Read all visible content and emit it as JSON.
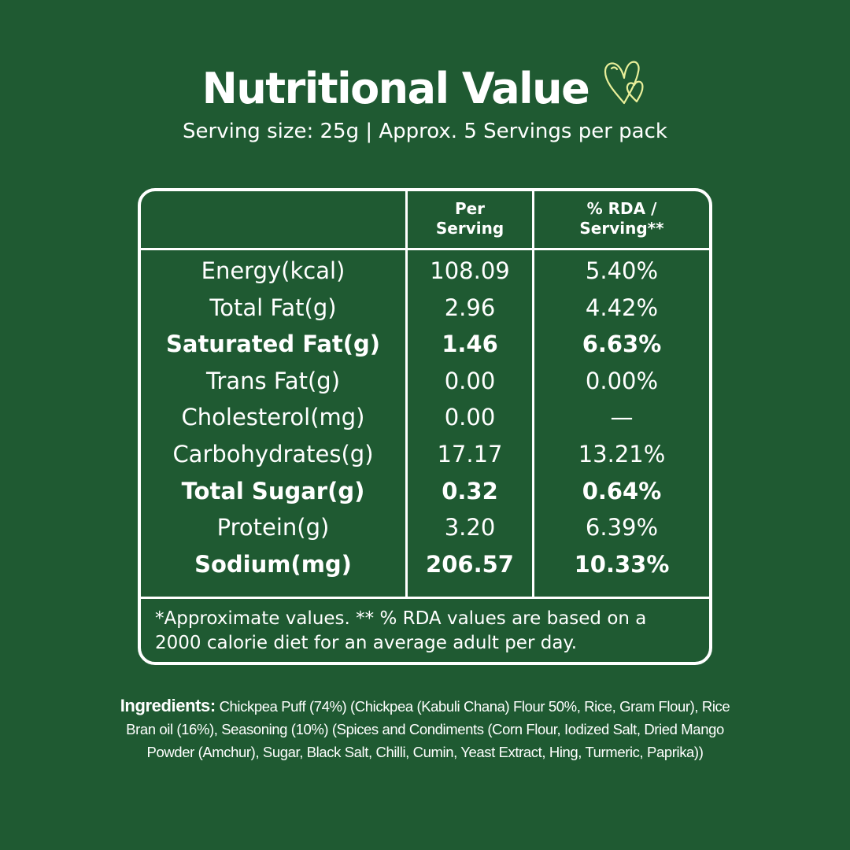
{
  "header": {
    "title": "Nutritional Value",
    "icon": "hearts-icon",
    "subtitle": "Serving size: 25g | Approx. 5 Servings per pack"
  },
  "table": {
    "headers": [
      "",
      "Per\nServing",
      "% RDA /\nServing**"
    ],
    "rows": [
      {
        "nutrient": "Energy(kcal)",
        "per_serving": "108.09",
        "rda": "5.40%",
        "bold": false
      },
      {
        "nutrient": "Total Fat(g)",
        "per_serving": "2.96",
        "rda": "4.42%",
        "bold": false
      },
      {
        "nutrient": "Saturated Fat(g)",
        "per_serving": "1.46",
        "rda": "6.63%",
        "bold": true
      },
      {
        "nutrient": "Trans Fat(g)",
        "per_serving": "0.00",
        "rda": "0.00%",
        "bold": false
      },
      {
        "nutrient": "Cholesterol(mg)",
        "per_serving": "0.00",
        "rda": "—",
        "bold": false
      },
      {
        "nutrient": "Carbohydrates(g)",
        "per_serving": "17.17",
        "rda": "13.21%",
        "bold": false
      },
      {
        "nutrient": "Total Sugar(g)",
        "per_serving": "0.32",
        "rda": "0.64%",
        "bold": true
      },
      {
        "nutrient": "Protein(g)",
        "per_serving": "3.20",
        "rda": "6.39%",
        "bold": false
      },
      {
        "nutrient": "Sodium(mg)",
        "per_serving": "206.57",
        "rda": "10.33%",
        "bold": true
      }
    ],
    "footnote": "*Approximate values. ** % RDA values are based on a 2000 calorie diet for an average adult per day."
  },
  "ingredients": {
    "label": "Ingredients:",
    "text": "Chickpea Puff (74%)  (Chickpea (Kabuli Chana) Flour 50%, Rice, Gram Flour), Rice Bran oil (16%), Seasoning (10%)  (Spices and Condiments (Corn Flour, Iodized Salt, Dried Mango Powder (Amchur), Sugar, Black Salt, Chilli, Cumin, Yeast Extract, Hing, Turmeric, Paprika))"
  },
  "colors": {
    "background": "#1f5a32",
    "text": "#ffffff",
    "icon": "#e9ef9a"
  }
}
